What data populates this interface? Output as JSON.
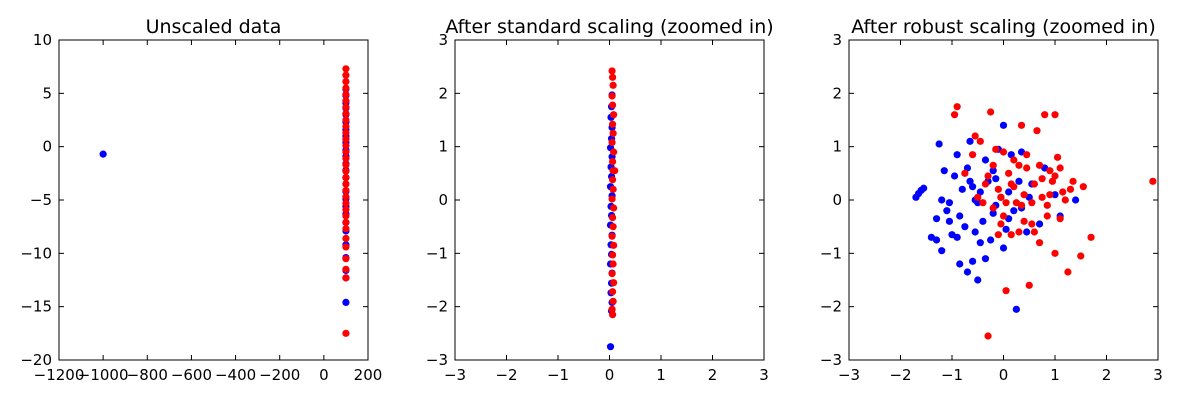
{
  "chart_data": [
    {
      "type": "scatter",
      "title": "Unscaled data",
      "xlim": [
        -1200,
        200
      ],
      "ylim": [
        -20,
        10
      ],
      "xticks": [
        -1200,
        -1000,
        -800,
        -600,
        -400,
        -200,
        0,
        200
      ],
      "yticks": [
        -20,
        -15,
        -10,
        -5,
        0,
        5,
        10
      ],
      "xtick_labels": [
        "−1200",
        "−1000",
        "−800",
        "−600",
        "−400",
        "−200",
        "0",
        "200"
      ],
      "ytick_labels": [
        "−20",
        "−15",
        "−10",
        "−5",
        "0",
        "5",
        "10"
      ],
      "grid": false,
      "series": [
        {
          "color": "#0000ff",
          "points": [
            [
              -1000,
              -0.7
            ],
            [
              100,
              5.4
            ],
            [
              100,
              4.8
            ],
            [
              100,
              4.1
            ],
            [
              100,
              3.6
            ],
            [
              100,
              3.0
            ],
            [
              100,
              2.3
            ],
            [
              100,
              1.6
            ],
            [
              100,
              1.0
            ],
            [
              100,
              0.4
            ],
            [
              100,
              -0.3
            ],
            [
              100,
              -0.9
            ],
            [
              100,
              -1.6
            ],
            [
              100,
              -2.2
            ],
            [
              100,
              -2.9
            ],
            [
              100,
              -3.5
            ],
            [
              100,
              -4.2
            ],
            [
              100,
              -4.9
            ],
            [
              100,
              -5.6
            ],
            [
              100,
              -6.3
            ],
            [
              100,
              -7.1
            ],
            [
              100,
              -7.9
            ],
            [
              100,
              -9.2
            ],
            [
              100,
              -10.4
            ],
            [
              100,
              -11.6
            ],
            [
              100,
              -12.3
            ],
            [
              100,
              -14.6
            ]
          ]
        },
        {
          "color": "#ff0000",
          "points": [
            [
              100,
              7.3
            ],
            [
              100,
              6.7
            ],
            [
              100,
              6.1
            ],
            [
              100,
              5.5
            ],
            [
              100,
              4.9
            ],
            [
              100,
              4.3
            ],
            [
              100,
              3.7
            ],
            [
              100,
              3.1
            ],
            [
              100,
              2.5
            ],
            [
              100,
              1.9
            ],
            [
              100,
              1.3
            ],
            [
              100,
              0.7
            ],
            [
              100,
              0.1
            ],
            [
              100,
              -0.5
            ],
            [
              100,
              -1.1
            ],
            [
              100,
              -1.7
            ],
            [
              100,
              -2.3
            ],
            [
              100,
              -2.9
            ],
            [
              100,
              -3.5
            ],
            [
              100,
              -4.1
            ],
            [
              100,
              -4.7
            ],
            [
              100,
              -5.3
            ],
            [
              100,
              -5.9
            ],
            [
              100,
              -6.5
            ],
            [
              100,
              -7.1
            ],
            [
              100,
              -7.7
            ],
            [
              100,
              -8.6
            ],
            [
              100,
              -9.4
            ],
            [
              100,
              -10.5
            ],
            [
              100,
              -11.5
            ],
            [
              100,
              -12.3
            ],
            [
              100,
              -17.5
            ]
          ]
        }
      ]
    },
    {
      "type": "scatter",
      "title": "After standard scaling (zoomed in)",
      "xlim": [
        -3,
        3
      ],
      "ylim": [
        -3,
        3
      ],
      "xticks": [
        -3,
        -2,
        -1,
        0,
        1,
        2,
        3
      ],
      "yticks": [
        -3,
        -2,
        -1,
        0,
        1,
        2,
        3
      ],
      "xtick_labels": [
        "−3",
        "−2",
        "−1",
        "0",
        "1",
        "2",
        "3"
      ],
      "ytick_labels": [
        "−3",
        "−2",
        "−1",
        "0",
        "1",
        "2",
        "3"
      ],
      "grid": false,
      "series": [
        {
          "color": "#0000ff",
          "points": [
            [
              0.05,
              1.97
            ],
            [
              0.04,
              1.75
            ],
            [
              0.03,
              1.55
            ],
            [
              0.05,
              1.36
            ],
            [
              0.04,
              1.15
            ],
            [
              0.02,
              0.98
            ],
            [
              0.05,
              0.81
            ],
            [
              0.03,
              0.62
            ],
            [
              0.04,
              0.44
            ],
            [
              0.02,
              0.25
            ],
            [
              0.05,
              0.08
            ],
            [
              0.03,
              -0.12
            ],
            [
              0.04,
              -0.29
            ],
            [
              0.02,
              -0.47
            ],
            [
              0.05,
              -0.66
            ],
            [
              0.03,
              -0.84
            ],
            [
              0.04,
              -1.02
            ],
            [
              0.02,
              -1.2
            ],
            [
              0.05,
              -1.37
            ],
            [
              0.04,
              -1.56
            ],
            [
              0.03,
              -1.74
            ],
            [
              0.05,
              -1.92
            ],
            [
              0.04,
              -2.08
            ],
            [
              0.02,
              -2.75
            ]
          ]
        },
        {
          "color": "#ff0000",
          "points": [
            [
              0.05,
              2.42
            ],
            [
              0.06,
              2.3
            ],
            [
              0.07,
              2.15
            ],
            [
              0.05,
              1.95
            ],
            [
              0.06,
              1.78
            ],
            [
              0.08,
              1.6
            ],
            [
              0.06,
              1.42
            ],
            [
              0.07,
              1.25
            ],
            [
              0.05,
              1.08
            ],
            [
              0.08,
              0.9
            ],
            [
              0.06,
              0.72
            ],
            [
              0.07,
              0.55
            ],
            [
              0.1,
              0.55
            ],
            [
              0.06,
              0.38
            ],
            [
              0.07,
              0.2
            ],
            [
              0.05,
              0.02
            ],
            [
              0.08,
              -0.15
            ],
            [
              0.06,
              -0.33
            ],
            [
              0.07,
              -0.5
            ],
            [
              0.05,
              -0.68
            ],
            [
              0.08,
              -0.85
            ],
            [
              0.06,
              -1.03
            ],
            [
              0.07,
              -1.2
            ],
            [
              0.05,
              -1.38
            ],
            [
              0.08,
              -1.55
            ],
            [
              0.06,
              -1.72
            ],
            [
              0.07,
              -1.9
            ],
            [
              0.05,
              -2.05
            ],
            [
              0.06,
              -2.15
            ]
          ]
        }
      ]
    },
    {
      "type": "scatter",
      "title": "After robust scaling (zoomed in)",
      "xlim": [
        -3,
        3
      ],
      "ylim": [
        -3,
        3
      ],
      "xticks": [
        -3,
        -2,
        -1,
        0,
        1,
        2,
        3
      ],
      "yticks": [
        -3,
        -2,
        -1,
        0,
        1,
        2,
        3
      ],
      "xtick_labels": [
        "−3",
        "−2",
        "−1",
        "0",
        "1",
        "2",
        "3"
      ],
      "ytick_labels": [
        "−3",
        "−2",
        "−1",
        "0",
        "1",
        "2",
        "3"
      ],
      "grid": false,
      "series": [
        {
          "color": "#0000ff",
          "points": [
            [
              -1.7,
              0.05
            ],
            [
              -1.65,
              0.12
            ],
            [
              -1.6,
              0.18
            ],
            [
              -1.55,
              0.22
            ],
            [
              -1.3,
              -0.35
            ],
            [
              -1.25,
              1.05
            ],
            [
              -1.2,
              0.0
            ],
            [
              -1.15,
              0.55
            ],
            [
              -1.1,
              -0.2
            ],
            [
              -1.05,
              -0.05
            ],
            [
              -1.0,
              -0.65
            ],
            [
              -0.95,
              0.45
            ],
            [
              -0.9,
              0.85
            ],
            [
              -0.85,
              -0.3
            ],
            [
              -0.8,
              0.2
            ],
            [
              -0.75,
              -0.5
            ],
            [
              -0.7,
              0.6
            ],
            [
              -0.65,
              1.1
            ],
            [
              -0.6,
              0.25
            ],
            [
              -0.55,
              -0.6
            ],
            [
              -0.5,
              -0.05
            ],
            [
              -0.45,
              0.15
            ],
            [
              -0.4,
              -0.4
            ],
            [
              -0.35,
              0.75
            ],
            [
              -0.3,
              0.35
            ],
            [
              -0.25,
              -0.75
            ],
            [
              -0.2,
              0.55
            ],
            [
              -0.15,
              -0.1
            ],
            [
              -0.1,
              0.95
            ],
            [
              -0.05,
              0.05
            ],
            [
              0.0,
              1.4
            ],
            [
              0.05,
              -0.55
            ],
            [
              0.1,
              0.15
            ],
            [
              0.15,
              0.85
            ],
            [
              0.2,
              -0.2
            ],
            [
              0.25,
              -2.05
            ],
            [
              0.3,
              0.35
            ],
            [
              0.35,
              0.9
            ],
            [
              0.45,
              -0.6
            ],
            [
              0.5,
              0.05
            ],
            [
              0.55,
              0.3
            ],
            [
              0.7,
              -0.45
            ],
            [
              0.8,
              0.6
            ],
            [
              1.0,
              0.1
            ],
            [
              1.1,
              -0.3
            ],
            [
              1.4,
              0.0
            ],
            [
              -1.4,
              -0.7
            ],
            [
              -1.3,
              -0.75
            ],
            [
              -1.2,
              -0.95
            ],
            [
              -0.85,
              -1.2
            ],
            [
              -0.7,
              -1.35
            ],
            [
              -0.5,
              -1.5
            ],
            [
              -0.35,
              -1.1
            ],
            [
              -0.6,
              -1.15
            ],
            [
              -0.15,
              0.4
            ],
            [
              0.0,
              -0.9
            ],
            [
              -1.05,
              -0.4
            ],
            [
              -0.9,
              -0.7
            ],
            [
              0.1,
              -0.35
            ],
            [
              -0.55,
              0.0
            ],
            [
              -0.45,
              -0.8
            ],
            [
              -0.2,
              -0.25
            ],
            [
              0.35,
              -0.15
            ],
            [
              -0.65,
              0.35
            ]
          ]
        },
        {
          "color": "#ff0000",
          "points": [
            [
              -0.95,
              1.6
            ],
            [
              -0.9,
              1.75
            ],
            [
              -0.55,
              1.2
            ],
            [
              -0.45,
              1.1
            ],
            [
              -0.4,
              -0.05
            ],
            [
              -0.35,
              0.3
            ],
            [
              -0.3,
              -2.55
            ],
            [
              -0.25,
              1.65
            ],
            [
              -0.2,
              -0.15
            ],
            [
              -0.15,
              0.95
            ],
            [
              -0.1,
              0.2
            ],
            [
              -0.05,
              0.05
            ],
            [
              0.0,
              -0.3
            ],
            [
              0.05,
              -1.7
            ],
            [
              0.1,
              0.5
            ],
            [
              0.15,
              -0.65
            ],
            [
              0.2,
              0.25
            ],
            [
              0.25,
              -0.05
            ],
            [
              0.3,
              0.65
            ],
            [
              0.35,
              1.4
            ],
            [
              0.4,
              -0.4
            ],
            [
              0.45,
              0.85
            ],
            [
              0.5,
              -1.6
            ],
            [
              0.55,
              -0.45
            ],
            [
              0.6,
              0.3
            ],
            [
              0.65,
              1.3
            ],
            [
              0.7,
              -0.8
            ],
            [
              0.75,
              0.05
            ],
            [
              0.8,
              1.6
            ],
            [
              0.85,
              -0.3
            ],
            [
              0.9,
              0.55
            ],
            [
              0.95,
              0.35
            ],
            [
              1.0,
              -1.0
            ],
            [
              1.05,
              0.8
            ],
            [
              1.1,
              -0.35
            ],
            [
              1.15,
              0.15
            ],
            [
              1.2,
              0.0
            ],
            [
              1.25,
              -1.35
            ],
            [
              1.3,
              0.2
            ],
            [
              1.35,
              0.35
            ],
            [
              1.5,
              -1.05
            ],
            [
              1.55,
              0.25
            ],
            [
              1.7,
              -0.7
            ],
            [
              2.9,
              0.35
            ],
            [
              -0.75,
              0.5
            ],
            [
              -0.6,
              0.85
            ],
            [
              -0.5,
              0.05
            ],
            [
              -0.3,
              0.45
            ],
            [
              -0.1,
              -0.65
            ],
            [
              0.0,
              0.9
            ],
            [
              0.2,
              0.75
            ],
            [
              0.4,
              0.1
            ],
            [
              0.55,
              -0.05
            ],
            [
              0.7,
              0.65
            ],
            [
              0.9,
              0.1
            ],
            [
              1.0,
              1.6
            ],
            [
              1.0,
              0.45
            ],
            [
              0.85,
              -0.1
            ],
            [
              0.6,
              -0.6
            ],
            [
              0.45,
              0.6
            ],
            [
              0.3,
              -0.6
            ],
            [
              0.15,
              0.3
            ],
            [
              0.05,
              -0.05
            ],
            [
              -0.05,
              -0.45
            ],
            [
              -0.2,
              0.65
            ],
            [
              0.75,
              0.4
            ],
            [
              1.1,
              0.6
            ],
            [
              0.35,
              -0.1
            ]
          ]
        }
      ]
    }
  ]
}
